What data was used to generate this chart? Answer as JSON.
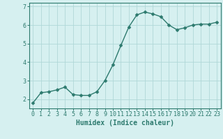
{
  "x": [
    0,
    1,
    2,
    3,
    4,
    5,
    6,
    7,
    8,
    9,
    10,
    11,
    12,
    13,
    14,
    15,
    16,
    17,
    18,
    19,
    20,
    21,
    22,
    23
  ],
  "y": [
    1.8,
    2.35,
    2.4,
    2.5,
    2.65,
    2.25,
    2.2,
    2.2,
    2.4,
    3.0,
    3.85,
    4.9,
    5.9,
    6.55,
    6.7,
    6.6,
    6.45,
    6.0,
    5.75,
    5.85,
    6.0,
    6.05,
    6.05,
    6.15
  ],
  "line_color": "#2d7a6e",
  "marker_color": "#2d7a6e",
  "bg_color": "#d6f0f0",
  "grid_color": "#b0d8d8",
  "axis_color": "#2d7a6e",
  "xlabel": "Humidex (Indice chaleur)",
  "ylim": [
    1.5,
    7.2
  ],
  "xlim": [
    -0.5,
    23.5
  ],
  "yticks": [
    2,
    3,
    4,
    5,
    6,
    7
  ],
  "xticks": [
    0,
    1,
    2,
    3,
    4,
    5,
    6,
    7,
    8,
    9,
    10,
    11,
    12,
    13,
    14,
    15,
    16,
    17,
    18,
    19,
    20,
    21,
    22,
    23
  ],
  "xlabel_fontsize": 7,
  "tick_fontsize": 6,
  "line_width": 1.0,
  "marker_size": 2.5
}
